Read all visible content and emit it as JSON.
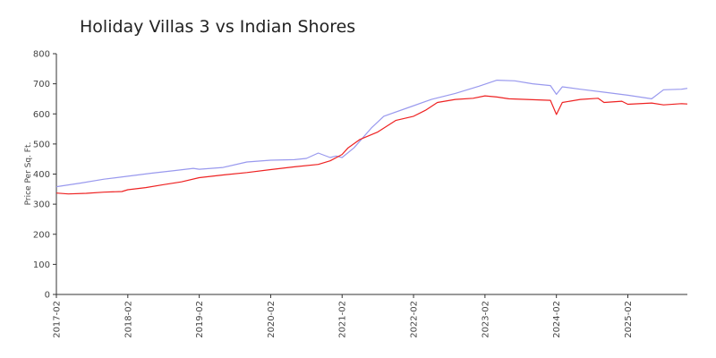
{
  "chart_data": {
    "type": "line",
    "title": "Holiday Villas 3 vs Indian Shores",
    "xlabel": "",
    "ylabel": "Price Per Sq. Ft.",
    "ylim": [
      0,
      800
    ],
    "yticks": [
      0,
      100,
      200,
      300,
      400,
      500,
      600,
      700,
      800
    ],
    "xlim": [
      "2017-02",
      "2025-12"
    ],
    "xticks": [
      "2017-02",
      "2018-02",
      "2019-02",
      "2020-02",
      "2021-02",
      "2022-02",
      "2023-02",
      "2024-02",
      "2025-02"
    ],
    "grid": false,
    "legend": "none",
    "series": [
      {
        "color": "#9999ee",
        "points": [
          [
            "2017-02",
            358
          ],
          [
            "2017-06",
            370
          ],
          [
            "2017-10",
            383
          ],
          [
            "2018-02",
            393
          ],
          [
            "2018-06",
            403
          ],
          [
            "2018-10",
            412
          ],
          [
            "2019-01",
            419
          ],
          [
            "2019-02",
            416
          ],
          [
            "2019-06",
            422
          ],
          [
            "2019-10",
            440
          ],
          [
            "2020-02",
            446
          ],
          [
            "2020-06",
            448
          ],
          [
            "2020-08",
            452
          ],
          [
            "2020-10",
            470
          ],
          [
            "2020-12",
            455
          ],
          [
            "2021-01",
            460
          ],
          [
            "2021-02",
            455
          ],
          [
            "2021-04",
            487
          ],
          [
            "2021-07",
            555
          ],
          [
            "2021-09",
            592
          ],
          [
            "2022-01",
            620
          ],
          [
            "2022-05",
            648
          ],
          [
            "2022-09",
            668
          ],
          [
            "2023-01",
            692
          ],
          [
            "2023-04",
            712
          ],
          [
            "2023-07",
            710
          ],
          [
            "2023-10",
            700
          ],
          [
            "2024-01",
            694
          ],
          [
            "2024-02",
            665
          ],
          [
            "2024-03",
            690
          ],
          [
            "2024-06",
            682
          ],
          [
            "2024-10",
            672
          ],
          [
            "2025-02",
            662
          ],
          [
            "2025-06",
            650
          ],
          [
            "2025-08",
            680
          ],
          [
            "2025-11",
            682
          ],
          [
            "2025-12",
            685
          ]
        ]
      },
      {
        "color": "#ee2222",
        "points": [
          [
            "2017-02",
            337
          ],
          [
            "2017-04",
            334
          ],
          [
            "2017-07",
            336
          ],
          [
            "2017-10",
            340
          ],
          [
            "2018-01",
            342
          ],
          [
            "2018-02",
            348
          ],
          [
            "2018-05",
            355
          ],
          [
            "2018-08",
            365
          ],
          [
            "2018-11",
            374
          ],
          [
            "2019-02",
            388
          ],
          [
            "2019-06",
            397
          ],
          [
            "2019-10",
            405
          ],
          [
            "2020-02",
            415
          ],
          [
            "2020-06",
            424
          ],
          [
            "2020-10",
            432
          ],
          [
            "2020-12",
            444
          ],
          [
            "2021-02",
            465
          ],
          [
            "2021-03",
            487
          ],
          [
            "2021-05",
            515
          ],
          [
            "2021-08",
            540
          ],
          [
            "2021-11",
            578
          ],
          [
            "2022-02",
            592
          ],
          [
            "2022-04",
            612
          ],
          [
            "2022-06",
            638
          ],
          [
            "2022-09",
            648
          ],
          [
            "2022-12",
            652
          ],
          [
            "2023-02",
            660
          ],
          [
            "2023-04",
            656
          ],
          [
            "2023-06",
            650
          ],
          [
            "2023-09",
            648
          ],
          [
            "2024-01",
            645
          ],
          [
            "2024-02",
            598
          ],
          [
            "2024-03",
            638
          ],
          [
            "2024-06",
            648
          ],
          [
            "2024-09",
            652
          ],
          [
            "2024-10",
            638
          ],
          [
            "2025-01",
            642
          ],
          [
            "2025-02",
            632
          ],
          [
            "2025-06",
            636
          ],
          [
            "2025-08",
            630
          ],
          [
            "2025-11",
            634
          ],
          [
            "2025-12",
            633
          ]
        ]
      }
    ]
  }
}
